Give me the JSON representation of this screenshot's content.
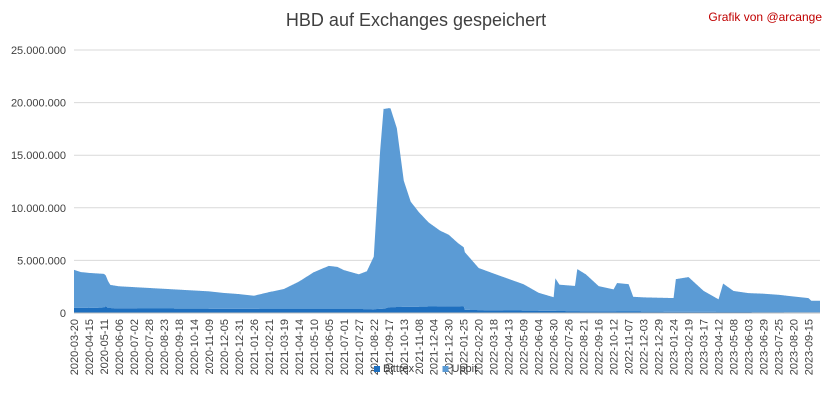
{
  "chart_data": {
    "type": "area",
    "title": "HBD auf Exchanges gespeichert",
    "credit": "Grafik von @arcange",
    "stacked": true,
    "ylim": [
      0,
      25000000
    ],
    "yticks": [
      "0",
      "5.000.000",
      "10.000.000",
      "15.000.000",
      "20.000.000",
      "25.000.000"
    ],
    "grid": true,
    "legend_position": "bottom",
    "x_start": "2020-03-20",
    "x_end": "2023-10-05",
    "xticks": [
      "2020-03-20",
      "2020-04-15",
      "2020-05-11",
      "2020-06-06",
      "2020-07-02",
      "2020-07-28",
      "2020-08-23",
      "2020-09-18",
      "2020-10-14",
      "2020-11-09",
      "2020-12-05",
      "2020-12-31",
      "2021-01-26",
      "2021-02-21",
      "2021-03-19",
      "2021-04-14",
      "2021-05-10",
      "2021-06-05",
      "2021-07-01",
      "2021-07-27",
      "2021-08-22",
      "2021-09-17",
      "2021-10-13",
      "2021-11-08",
      "2021-12-04",
      "2021-12-30",
      "2022-01-25",
      "2022-02-20",
      "2022-03-18",
      "2022-04-13",
      "2022-05-09",
      "2022-06-04",
      "2022-06-30",
      "2022-07-26",
      "2022-08-21",
      "2022-09-16",
      "2022-10-12",
      "2022-11-07",
      "2022-12-03",
      "2022-12-29",
      "2023-01-24",
      "2023-02-19",
      "2023-03-17",
      "2023-04-12",
      "2023-05-08",
      "2023-06-03",
      "2023-06-29",
      "2023-07-25",
      "2023-08-20",
      "2023-09-15"
    ],
    "series": [
      {
        "name": "Bittrex",
        "color": "#1e6fbf",
        "points": [
          [
            "2020-03-20",
            500000
          ],
          [
            "2020-04-15",
            480000
          ],
          [
            "2020-05-11",
            520000
          ],
          [
            "2020-05-14",
            650000
          ],
          [
            "2020-05-18",
            480000
          ],
          [
            "2020-06-06",
            440000
          ],
          [
            "2020-09-18",
            420000
          ],
          [
            "2020-12-31",
            400000
          ],
          [
            "2021-02-21",
            380000
          ],
          [
            "2021-05-10",
            380000
          ],
          [
            "2021-07-27",
            380000
          ],
          [
            "2021-08-22",
            360000
          ],
          [
            "2021-09-10",
            420000
          ],
          [
            "2021-09-17",
            550000
          ],
          [
            "2021-10-13",
            580000
          ],
          [
            "2021-11-08",
            600000
          ],
          [
            "2021-12-04",
            620000
          ],
          [
            "2021-12-30",
            640000
          ],
          [
            "2022-01-25",
            650000
          ],
          [
            "2022-01-27",
            300000
          ],
          [
            "2022-03-18",
            250000
          ],
          [
            "2022-06-04",
            220000
          ],
          [
            "2022-07-26",
            180000
          ],
          [
            "2022-10-12",
            150000
          ],
          [
            "2023-01-24",
            120000
          ],
          [
            "2023-04-12",
            100000
          ],
          [
            "2023-07-25",
            80000
          ],
          [
            "2023-10-05",
            60000
          ]
        ]
      },
      {
        "name": "Upbit",
        "color": "#5b9bd5",
        "points": [
          [
            "2020-03-20",
            3600000
          ],
          [
            "2020-04-01",
            3400000
          ],
          [
            "2020-05-11",
            3200000
          ],
          [
            "2020-05-22",
            2200000
          ],
          [
            "2020-06-06",
            2100000
          ],
          [
            "2020-07-28",
            1950000
          ],
          [
            "2020-09-18",
            1800000
          ],
          [
            "2020-11-09",
            1650000
          ],
          [
            "2020-12-05",
            1500000
          ],
          [
            "2020-12-31",
            1400000
          ],
          [
            "2021-01-26",
            1250000
          ],
          [
            "2021-02-21",
            1600000
          ],
          [
            "2021-03-19",
            1900000
          ],
          [
            "2021-04-14",
            2600000
          ],
          [
            "2021-05-10",
            3500000
          ],
          [
            "2021-06-05",
            4100000
          ],
          [
            "2021-06-20",
            4000000
          ],
          [
            "2021-07-01",
            3700000
          ],
          [
            "2021-07-27",
            3300000
          ],
          [
            "2021-08-10",
            3600000
          ],
          [
            "2021-08-22",
            5000000
          ],
          [
            "2021-09-02",
            15000000
          ],
          [
            "2021-09-08",
            19000000
          ],
          [
            "2021-09-20",
            18900000
          ],
          [
            "2021-10-01",
            17000000
          ],
          [
            "2021-10-13",
            12000000
          ],
          [
            "2021-10-25",
            10000000
          ],
          [
            "2021-11-08",
            9000000
          ],
          [
            "2021-11-25",
            8000000
          ],
          [
            "2021-12-15",
            7200000
          ],
          [
            "2021-12-30",
            6800000
          ],
          [
            "2022-01-15",
            6000000
          ],
          [
            "2022-01-25",
            5600000
          ],
          [
            "2022-02-20",
            4000000
          ],
          [
            "2022-03-18",
            3500000
          ],
          [
            "2022-04-13",
            3000000
          ],
          [
            "2022-05-09",
            2500000
          ],
          [
            "2022-06-04",
            1700000
          ],
          [
            "2022-06-30",
            1300000
          ],
          [
            "2022-07-03",
            3100000
          ],
          [
            "2022-07-10",
            2500000
          ],
          [
            "2022-08-06",
            2400000
          ],
          [
            "2022-08-10",
            4000000
          ],
          [
            "2022-08-25",
            3500000
          ],
          [
            "2022-09-16",
            2400000
          ],
          [
            "2022-10-12",
            2100000
          ],
          [
            "2022-10-18",
            2700000
          ],
          [
            "2022-11-07",
            2600000
          ],
          [
            "2022-11-15",
            1400000
          ],
          [
            "2022-12-03",
            1350000
          ],
          [
            "2023-01-24",
            1300000
          ],
          [
            "2023-01-28",
            3100000
          ],
          [
            "2023-02-19",
            3300000
          ],
          [
            "2023-03-17",
            2000000
          ],
          [
            "2023-04-12",
            1200000
          ],
          [
            "2023-04-20",
            2700000
          ],
          [
            "2023-05-08",
            2000000
          ],
          [
            "2023-06-03",
            1800000
          ],
          [
            "2023-06-29",
            1750000
          ],
          [
            "2023-07-25",
            1650000
          ],
          [
            "2023-08-20",
            1500000
          ],
          [
            "2023-09-15",
            1350000
          ],
          [
            "2023-09-20",
            1100000
          ],
          [
            "2023-10-05",
            1100000
          ]
        ]
      }
    ]
  }
}
